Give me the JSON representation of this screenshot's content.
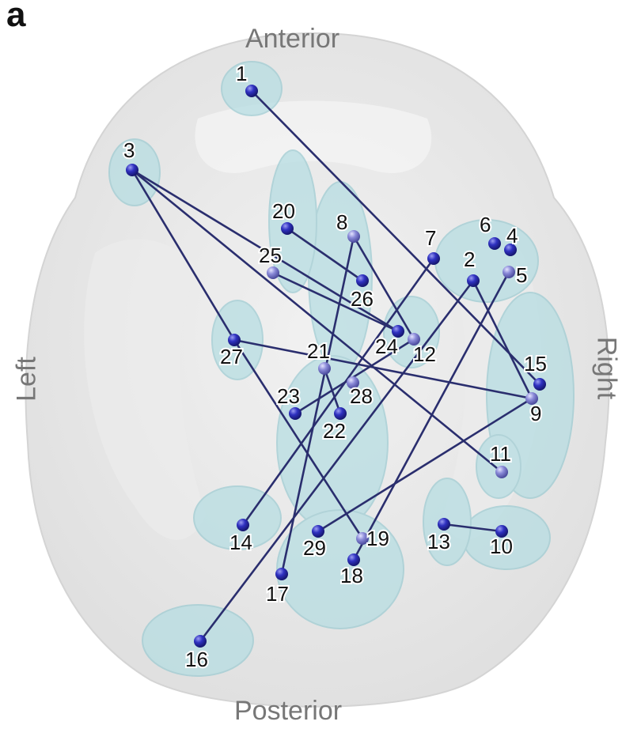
{
  "panel_letter": "a",
  "orientation": {
    "anterior": "Anterior",
    "posterior": "Posterior",
    "left": "Left",
    "right": "Right"
  },
  "colors": {
    "brain_shell": "#e6e6e6",
    "region_fill": "#b7dde2",
    "edge": "#2a2e6e",
    "node_dark": "#2426a8",
    "node_light": "#8c8ce0"
  },
  "nodes": [
    {
      "id": "1",
      "label": "1"
    },
    {
      "id": "2",
      "label": "2"
    },
    {
      "id": "3",
      "label": "3"
    },
    {
      "id": "4",
      "label": "4"
    },
    {
      "id": "5",
      "label": "5"
    },
    {
      "id": "6",
      "label": "6"
    },
    {
      "id": "7",
      "label": "7"
    },
    {
      "id": "8",
      "label": "8"
    },
    {
      "id": "9",
      "label": "9"
    },
    {
      "id": "10",
      "label": "10"
    },
    {
      "id": "11",
      "label": "11"
    },
    {
      "id": "12",
      "label": "12"
    },
    {
      "id": "13",
      "label": "13"
    },
    {
      "id": "14",
      "label": "14"
    },
    {
      "id": "15",
      "label": "15"
    },
    {
      "id": "16",
      "label": "16"
    },
    {
      "id": "17",
      "label": "17"
    },
    {
      "id": "18",
      "label": "18"
    },
    {
      "id": "19",
      "label": "19"
    },
    {
      "id": "20",
      "label": "20"
    },
    {
      "id": "21",
      "label": "21"
    },
    {
      "id": "22",
      "label": "22"
    },
    {
      "id": "23",
      "label": "23"
    },
    {
      "id": "24",
      "label": "24"
    },
    {
      "id": "25",
      "label": "25"
    },
    {
      "id": "26",
      "label": "26"
    },
    {
      "id": "27",
      "label": "27"
    },
    {
      "id": "28",
      "label": "28"
    },
    {
      "id": "29",
      "label": "29"
    }
  ],
  "edges": [
    [
      "1",
      "15"
    ],
    [
      "3",
      "27"
    ],
    [
      "3",
      "24"
    ],
    [
      "3",
      "11"
    ],
    [
      "20",
      "26"
    ],
    [
      "8",
      "12"
    ],
    [
      "8",
      "17"
    ],
    [
      "25",
      "24"
    ],
    [
      "27",
      "9"
    ],
    [
      "27",
      "19"
    ],
    [
      "7",
      "14"
    ],
    [
      "2",
      "16"
    ],
    [
      "2",
      "9"
    ],
    [
      "5",
      "18"
    ],
    [
      "21",
      "22"
    ],
    [
      "23",
      "12"
    ],
    [
      "29",
      "9"
    ],
    [
      "13",
      "10"
    ]
  ]
}
